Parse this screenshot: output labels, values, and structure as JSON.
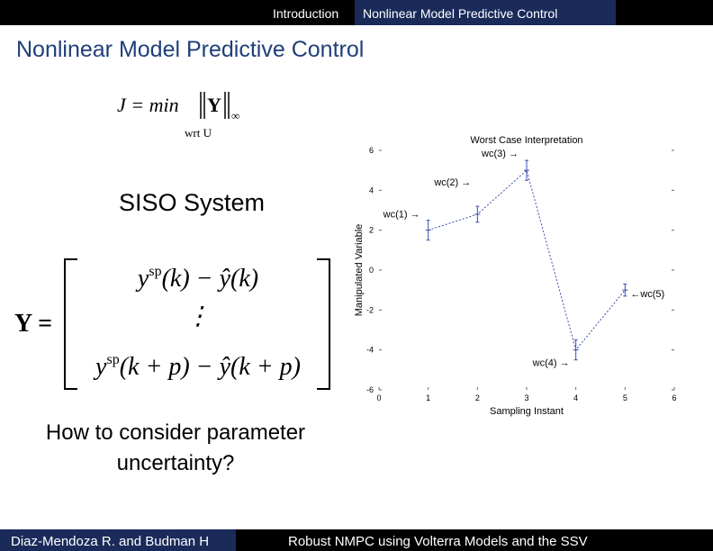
{
  "header": {
    "section": "Introduction",
    "current": "Nonlinear Model Predictive Control"
  },
  "title": "Nonlinear Model Predictive Control",
  "objective": {
    "lhs": "J = min",
    "norm": "Y",
    "sub": "∞",
    "under": "wrt U"
  },
  "system": "SISO System",
  "matrix": {
    "lhs": "Y =",
    "rows": [
      {
        "base": "y",
        "sup": "sp",
        "rest": "(k) − ŷ(k)"
      },
      {
        "rest": "⋮"
      },
      {
        "base": "y",
        "sup": "sp",
        "rest": "(k + p) − ŷ(k + p)"
      }
    ]
  },
  "question": [
    "How to consider parameter",
    "uncertainty?"
  ],
  "figure": {
    "type": "scatter",
    "title": "Worst Case Interpretation",
    "x_label": "Sampling Instant",
    "y_label": "Manipulated Variable",
    "x": [
      1,
      2,
      3,
      4,
      5
    ],
    "values": [
      2,
      2.8,
      5,
      -4,
      -1
    ],
    "errors": [
      0.5,
      0.4,
      0.5,
      0.5,
      0.3
    ],
    "color": "#3a4fb0",
    "annotations": [
      "wc(1) →",
      "wc(2) →",
      "wc(3) →",
      "wc(4) →",
      "←wc(5)"
    ],
    "xlim": [
      0,
      6
    ],
    "ylim": [
      -6,
      6
    ],
    "xticks": [
      0,
      1,
      2,
      3,
      4,
      5,
      6
    ],
    "yticks": [
      -6,
      -4,
      -2,
      0,
      2,
      4,
      6
    ]
  },
  "footer": {
    "authors": "Diaz-Mendoza R. and Budman H",
    "talk": "Robust NMPC using Volterra Models and the SSV"
  }
}
